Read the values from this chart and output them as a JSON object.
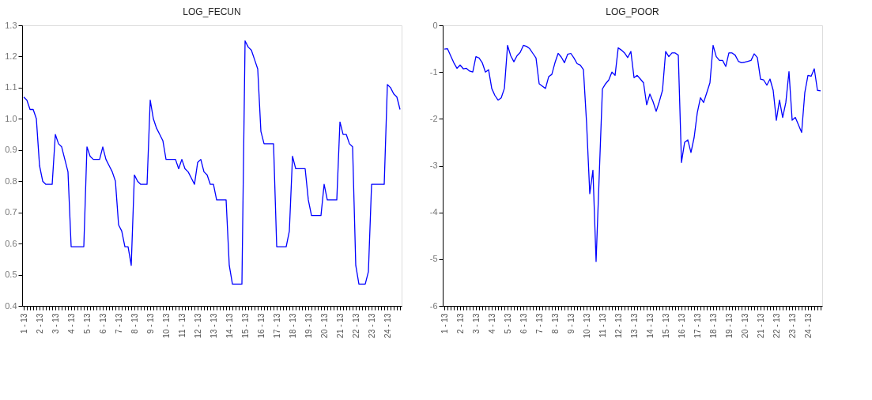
{
  "chart_data": [
    {
      "type": "line",
      "title": "LOG_FECUN",
      "categories": [
        "1 - 13",
        null,
        null,
        null,
        null,
        "2 - 13",
        null,
        null,
        null,
        null,
        "3 - 13",
        null,
        null,
        null,
        null,
        "4 - 13",
        null,
        null,
        null,
        null,
        "5 - 13",
        null,
        null,
        null,
        null,
        "6 - 13",
        null,
        null,
        null,
        null,
        "7 - 13",
        null,
        null,
        null,
        null,
        "8 - 13",
        null,
        null,
        null,
        null,
        "9 - 13",
        null,
        null,
        null,
        null,
        "10 - 13",
        null,
        null,
        null,
        null,
        "11 - 13",
        null,
        null,
        null,
        null,
        "12 - 13",
        null,
        null,
        null,
        null,
        "13 - 13",
        null,
        null,
        null,
        null,
        "14 - 13",
        null,
        null,
        null,
        null,
        "15 - 13",
        null,
        null,
        null,
        null,
        "16 - 13",
        null,
        null,
        null,
        null,
        "17 - 13",
        null,
        null,
        null,
        null,
        "18 - 13",
        null,
        null,
        null,
        null,
        "19 - 13",
        null,
        null,
        null,
        null,
        "20 - 13",
        null,
        null,
        null,
        null,
        "21 - 13",
        null,
        null,
        null,
        null,
        "22 - 13",
        null,
        null,
        null,
        null,
        "23 - 13",
        null,
        null,
        null,
        null,
        "24 - 13",
        null,
        null,
        null,
        null
      ],
      "series": [
        {
          "color": "#0000ff",
          "values": [
            1.07,
            1.06,
            1.03,
            1.03,
            1.0,
            0.85,
            0.8,
            0.79,
            0.79,
            0.79,
            0.95,
            0.92,
            0.91,
            0.87,
            0.83,
            0.59,
            0.59,
            0.59,
            0.59,
            0.59,
            0.91,
            0.88,
            0.87,
            0.87,
            0.87,
            0.91,
            0.87,
            0.85,
            0.83,
            0.8,
            0.66,
            0.64,
            0.59,
            0.59,
            0.53,
            0.82,
            0.8,
            0.79,
            0.79,
            0.79,
            1.06,
            1.0,
            0.97,
            0.95,
            0.93,
            0.87,
            0.87,
            0.87,
            0.87,
            0.84,
            0.87,
            0.84,
            0.83,
            0.81,
            0.79,
            0.86,
            0.87,
            0.83,
            0.82,
            0.79,
            0.79,
            0.74,
            0.74,
            0.74,
            0.74,
            0.53,
            0.47,
            0.47,
            0.47,
            0.47,
            1.25,
            1.23,
            1.22,
            1.19,
            1.16,
            0.96,
            0.92,
            0.92,
            0.92,
            0.92,
            0.59,
            0.59,
            0.59,
            0.59,
            0.64,
            0.88,
            0.84,
            0.84,
            0.84,
            0.84,
            0.74,
            0.69,
            0.69,
            0.69,
            0.69,
            0.79,
            0.74,
            0.74,
            0.74,
            0.74,
            0.99,
            0.95,
            0.95,
            0.92,
            0.91,
            0.53,
            0.47,
            0.47,
            0.47,
            0.51,
            0.79,
            0.79,
            0.79,
            0.79,
            0.79,
            1.11,
            1.1,
            1.08,
            1.07,
            1.03
          ]
        }
      ],
      "ylim": [
        0.4,
        1.3
      ],
      "yticks": [
        {
          "value": 0.4,
          "label": "0.4"
        },
        {
          "value": 0.5,
          "label": "0.5"
        },
        {
          "value": 0.6,
          "label": "0.6"
        },
        {
          "value": 0.7,
          "label": "0.7"
        },
        {
          "value": 0.8,
          "label": "0.8"
        },
        {
          "value": 0.9,
          "label": "0.9"
        },
        {
          "value": 1.0,
          "label": "1.0"
        },
        {
          "value": 1.1,
          "label": "1.1"
        },
        {
          "value": 1.2,
          "label": "1.2"
        },
        {
          "value": 1.3,
          "label": "1.3"
        }
      ],
      "grid": false
    },
    {
      "type": "line",
      "title": "LOG_POOR",
      "categories": [
        "1 - 13",
        null,
        null,
        null,
        null,
        "2 - 13",
        null,
        null,
        null,
        null,
        "3 - 13",
        null,
        null,
        null,
        null,
        "4 - 13",
        null,
        null,
        null,
        null,
        "5 - 13",
        null,
        null,
        null,
        null,
        "6 - 13",
        null,
        null,
        null,
        null,
        "7 - 13",
        null,
        null,
        null,
        null,
        "8 - 13",
        null,
        null,
        null,
        null,
        "9 - 13",
        null,
        null,
        null,
        null,
        "10 - 13",
        null,
        null,
        null,
        null,
        "11 - 13",
        null,
        null,
        null,
        null,
        "12 - 13",
        null,
        null,
        null,
        null,
        "13 - 13",
        null,
        null,
        null,
        null,
        "14 - 13",
        null,
        null,
        null,
        null,
        "15 - 13",
        null,
        null,
        null,
        null,
        "16 - 13",
        null,
        null,
        null,
        null,
        "17 - 13",
        null,
        null,
        null,
        null,
        "18 - 13",
        null,
        null,
        null,
        null,
        "19 - 13",
        null,
        null,
        null,
        null,
        "20 - 13",
        null,
        null,
        null,
        null,
        "21 - 13",
        null,
        null,
        null,
        null,
        "22 - 13",
        null,
        null,
        null,
        null,
        "23 - 13",
        null,
        null,
        null,
        null,
        "24 - 13",
        null,
        null,
        null,
        null
      ],
      "series": [
        {
          "color": "#0000ff",
          "values": [
            -0.51,
            -0.5,
            -0.65,
            -0.8,
            -0.92,
            -0.85,
            -0.93,
            -0.92,
            -0.98,
            -1.0,
            -0.67,
            -0.7,
            -0.8,
            -1.0,
            -0.95,
            -1.35,
            -1.5,
            -1.6,
            -1.55,
            -1.35,
            -0.43,
            -0.65,
            -0.78,
            -0.65,
            -0.58,
            -0.43,
            -0.45,
            -0.5,
            -0.6,
            -0.7,
            -1.25,
            -1.3,
            -1.35,
            -1.1,
            -1.05,
            -0.8,
            -0.6,
            -0.68,
            -0.8,
            -0.62,
            -0.6,
            -0.7,
            -0.82,
            -0.85,
            -0.95,
            -2.1,
            -3.6,
            -3.1,
            -5.05,
            -3.2,
            -1.36,
            -1.25,
            -1.17,
            -1.0,
            -1.07,
            -0.48,
            -0.53,
            -0.59,
            -0.69,
            -0.56,
            -1.12,
            -1.07,
            -1.15,
            -1.23,
            -1.7,
            -1.47,
            -1.63,
            -1.84,
            -1.63,
            -1.39,
            -0.56,
            -0.67,
            -0.59,
            -0.59,
            -0.64,
            -2.93,
            -2.5,
            -2.45,
            -2.72,
            -2.4,
            -1.87,
            -1.55,
            -1.65,
            -1.44,
            -1.23,
            -0.43,
            -0.67,
            -0.75,
            -0.75,
            -0.88,
            -0.59,
            -0.59,
            -0.64,
            -0.77,
            -0.8,
            -0.79,
            -0.77,
            -0.75,
            -0.61,
            -0.69,
            -1.15,
            -1.17,
            -1.28,
            -1.15,
            -1.39,
            -2.03,
            -1.6,
            -1.97,
            -1.65,
            -0.99,
            -2.03,
            -1.97,
            -2.13,
            -2.29,
            -1.44,
            -1.07,
            -1.09,
            -0.93,
            -1.39,
            -1.4
          ]
        }
      ],
      "ylim": [
        -6,
        0
      ],
      "yticks": [
        -6,
        -5,
        -4,
        -3,
        -2,
        -1,
        0
      ],
      "grid": false
    }
  ]
}
